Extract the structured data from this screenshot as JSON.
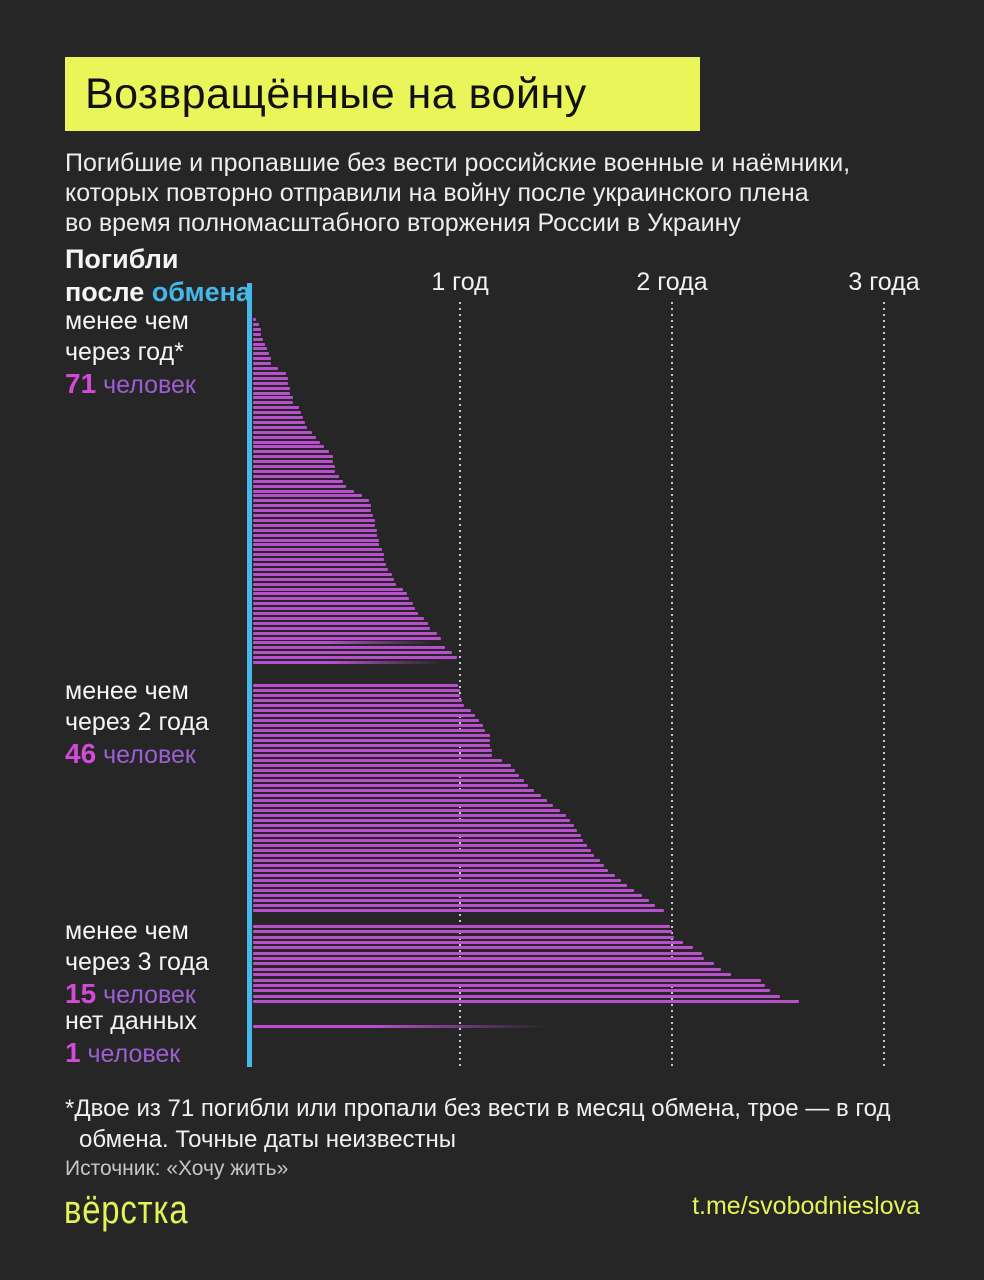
{
  "page": {
    "background": "#262626"
  },
  "header": {
    "title": "Возвращённые на войну",
    "title_bg": "#e9f558",
    "subtitle_lines": [
      "Погибшие и пропавшие без вести российские военные и наёмники,",
      "которых повторно отправили на войну после украинского плена",
      "во время полномасштабного вторжения России в Украину"
    ]
  },
  "chart_data": {
    "type": "bar",
    "orientation": "horizontal",
    "units": "years_after_exchange",
    "axis_title": {
      "line1": "Погибли",
      "line2_white": "после ",
      "line2_accent": "обмена"
    },
    "accent_color": "#45b8e9",
    "bar_color": "#b84fcd",
    "xlim": [
      0,
      3.2
    ],
    "x_ticks": [
      {
        "label": "1 год",
        "value": 1
      },
      {
        "label": "2 года",
        "value": 2
      },
      {
        "label": "3 года",
        "value": 3
      }
    ],
    "groups": [
      {
        "label_lines": [
          "менее чем",
          "через год*"
        ],
        "count": "71",
        "count_word": "человек",
        "values": [
          0.04,
          0.05,
          0.06,
          0.06,
          0.07,
          0.08,
          0.09,
          0.1,
          0.11,
          0.11,
          0.14,
          0.18,
          0.19,
          0.19,
          0.2,
          0.2,
          0.21,
          0.21,
          0.24,
          0.25,
          0.26,
          0.27,
          0.28,
          0.3,
          0.32,
          0.34,
          0.36,
          0.38,
          0.4,
          0.4,
          0.41,
          0.41,
          0.43,
          0.45,
          0.46,
          0.5,
          0.54,
          0.57,
          0.58,
          0.58,
          0.59,
          0.6,
          0.6,
          0.61,
          0.61,
          0.62,
          0.62,
          0.63,
          0.64,
          0.64,
          0.65,
          0.66,
          0.68,
          0.69,
          0.7,
          0.73,
          0.75,
          0.76,
          0.78,
          0.79,
          0.8,
          0.83,
          0.85,
          0.86,
          0.89,
          0.91,
          0.9,
          0.93,
          0.96,
          0.985,
          0.95
        ],
        "faded_indices": [
          66,
          70
        ]
      },
      {
        "label_lines": [
          "менее чем",
          "через 2 года"
        ],
        "count": "46",
        "count_word": "человек",
        "values": [
          0.99,
          1.0,
          1.0,
          1.01,
          1.02,
          1.05,
          1.07,
          1.09,
          1.11,
          1.12,
          1.14,
          1.14,
          1.14,
          1.15,
          1.15,
          1.2,
          1.24,
          1.26,
          1.28,
          1.3,
          1.32,
          1.35,
          1.38,
          1.41,
          1.44,
          1.47,
          1.5,
          1.52,
          1.54,
          1.55,
          1.57,
          1.58,
          1.6,
          1.62,
          1.63,
          1.66,
          1.68,
          1.7,
          1.73,
          1.76,
          1.79,
          1.82,
          1.86,
          1.89,
          1.92,
          1.96
        ],
        "faded_indices": []
      },
      {
        "label_lines": [
          "менее чем",
          "через 3 года"
        ],
        "count": "15",
        "count_word": "человек",
        "values": [
          1.99,
          2.0,
          2.01,
          2.05,
          2.1,
          2.14,
          2.15,
          2.2,
          2.23,
          2.28,
          2.42,
          2.44,
          2.46,
          2.51,
          2.6
        ],
        "faded_indices": []
      },
      {
        "label_lines": [
          "нет данных"
        ],
        "count": "1",
        "count_word": "человек",
        "values": [
          1.44
        ],
        "faded_indices": [
          0
        ]
      }
    ],
    "count_number_color": "#d44ad8",
    "count_word_color": "#9d5ed2"
  },
  "footnote": {
    "line1": "*Двое из 71 погибли или пропали без вести в месяц обмена, трое — в год",
    "line2": "обмена. Точные даты неизвестны"
  },
  "source": "Источник: «Хочу жить»",
  "footer": {
    "logo": "вёрстка",
    "handle": "t.me/svobodnieslova",
    "accent": "#e3f456"
  }
}
